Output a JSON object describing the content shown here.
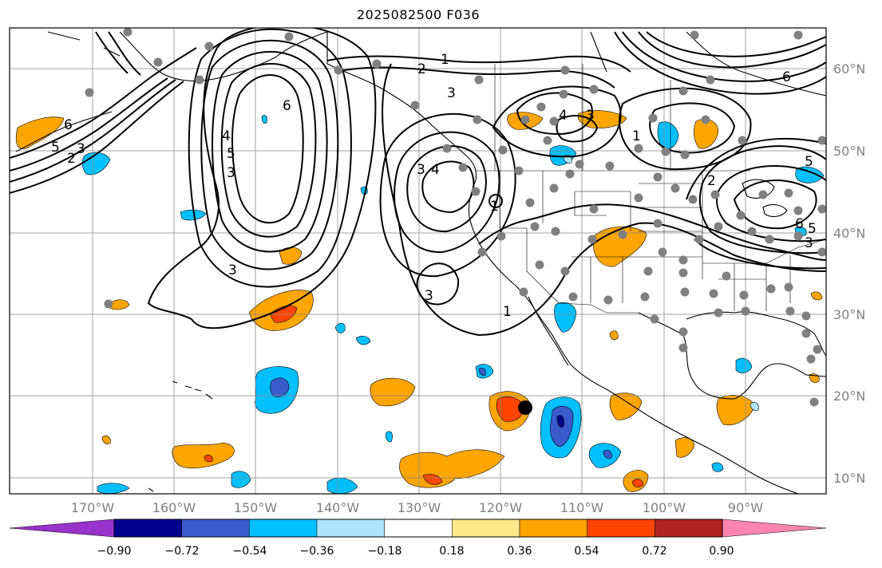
{
  "title": "2025082500 F036",
  "lon_labels": [
    "170°W",
    "160°W",
    "150°W",
    "140°W",
    "130°W",
    "120°W",
    "110°W",
    "100°W",
    "90°W"
  ],
  "lat_labels": [
    "60°N",
    "50°N",
    "40°N",
    "30°N",
    "20°N",
    "10°N"
  ],
  "colorbar": {
    "ticks": [
      "−0.90",
      "−0.72",
      "−0.54",
      "−0.36",
      "−0.18",
      "0.18",
      "0.36",
      "0.54",
      "0.72",
      "0.90"
    ],
    "colors": [
      "#9932cc",
      "#00008b",
      "#3a5bcc",
      "#00bfff",
      "#ade3fb",
      "#ffffff",
      "#fde98a",
      "#ffa500",
      "#ff4500",
      "#b22222",
      "#ff85b0"
    ]
  },
  "contour_labels": [
    "1",
    "2",
    "3",
    "4",
    "5",
    "6"
  ],
  "marker": "storm-center-dot"
}
